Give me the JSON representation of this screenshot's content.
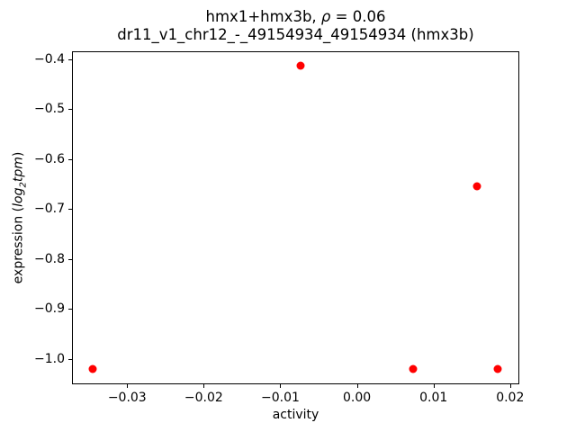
{
  "title": {
    "line1_prefix": "hmx1+hmx3b, ",
    "line1_rho": "ρ",
    "line1_suffix": " = 0.06",
    "line2": "dr11_v1_chr12_-_49154934_49154934 (hmx3b)"
  },
  "ylabel_parts": {
    "prefix": "expression (",
    "log": "log",
    "sub": "2",
    "tpm": "tpm",
    "suffix": ")"
  },
  "chart_data": {
    "type": "scatter",
    "title": "hmx1+hmx3b, ρ = 0.06",
    "subtitle": "dr11_v1_chr12_-_49154934_49154934 (hmx3b)",
    "xlabel": "activity",
    "ylabel": "expression (log2tpm)",
    "grid": false,
    "legend": null,
    "marker_color": "#ff0000",
    "axis_color": "#000000",
    "background_color": "#ffffff",
    "xlim": [
      -0.0372,
      0.0212
    ],
    "ylim": [
      -1.0505,
      -0.3838
    ],
    "xticks": [
      -0.03,
      -0.02,
      -0.01,
      0.0,
      0.01,
      0.02
    ],
    "xtick_labels": [
      "−0.03",
      "−0.02",
      "−0.01",
      "0.00",
      "0.01",
      "0.02"
    ],
    "yticks": [
      -0.4,
      -0.5,
      -0.6,
      -0.7,
      -0.8,
      -0.9,
      -1.0
    ],
    "ytick_labels": [
      "−0.4",
      "−0.5",
      "−0.6",
      "−0.7",
      "−0.8",
      "−0.9",
      "−1.0"
    ],
    "points": [
      {
        "x": -0.0074,
        "y": -0.413
      },
      {
        "x": 0.0157,
        "y": -0.654
      },
      {
        "x": -0.0345,
        "y": -1.02
      },
      {
        "x": 0.0073,
        "y": -1.02
      },
      {
        "x": 0.0184,
        "y": -1.02
      }
    ]
  }
}
